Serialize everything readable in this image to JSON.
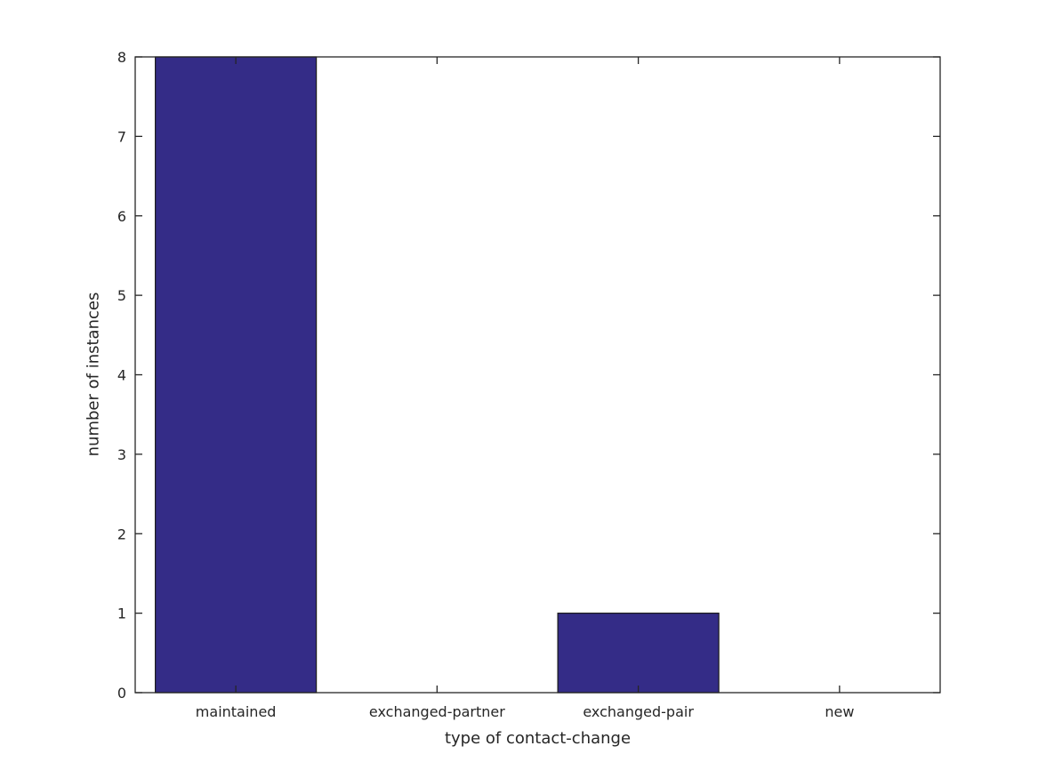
{
  "chart_data": {
    "type": "bar",
    "title": "",
    "categories": [
      "maintained",
      "exchanged-partner",
      "exchanged-pair",
      "new"
    ],
    "values": [
      8,
      0,
      1,
      0
    ],
    "xlabel": "type of contact-change",
    "ylabel": "number of instances",
    "ylim": [
      0,
      8
    ],
    "yticks": [
      0,
      1,
      2,
      3,
      4,
      5,
      6,
      7,
      8
    ],
    "grid": false,
    "legend": "none",
    "tick_direction": "in",
    "bar_width_fraction": 0.8,
    "colors": {
      "bar_fill": "#342c87",
      "bar_edge": "#1a1a1a",
      "axis": "#262626",
      "text": "#262626",
      "background": "#ffffff"
    }
  }
}
